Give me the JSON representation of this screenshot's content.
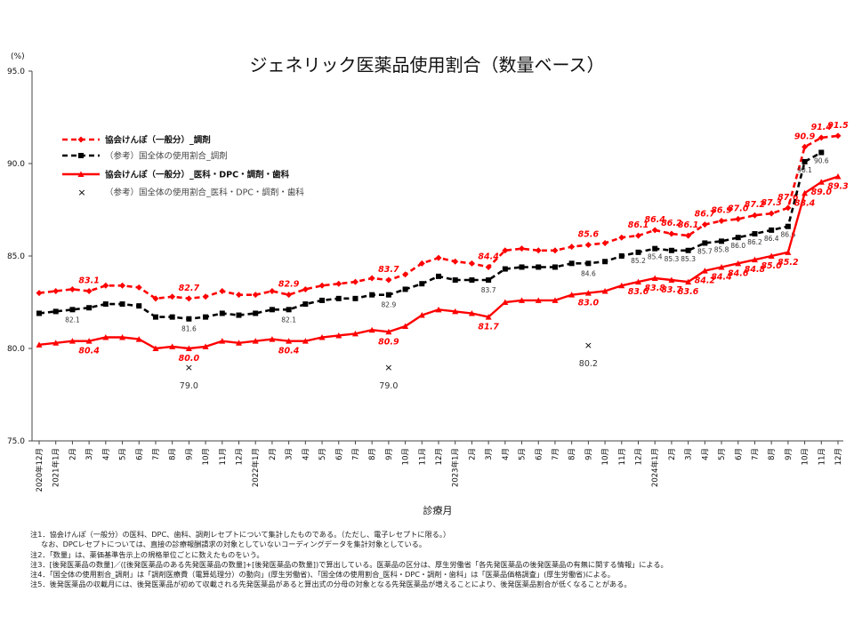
{
  "chart_data": {
    "type": "line",
    "title": "ジェネリック医薬品使用割合（数量ベース）",
    "unit_label": "(%)",
    "xlabel": "診療月",
    "ylim": [
      75.0,
      95.0
    ],
    "yticks": [
      "75.0",
      "80.0",
      "85.0",
      "90.0",
      "95.0"
    ],
    "categories": [
      "2020年12月",
      "2021年1月",
      "2月",
      "3月",
      "4月",
      "5月",
      "6月",
      "7月",
      "8月",
      "9月",
      "10月",
      "11月",
      "12月",
      "2022年1月",
      "2月",
      "3月",
      "4月",
      "5月",
      "6月",
      "7月",
      "8月",
      "9月",
      "10月",
      "11月",
      "12月",
      "2023年1月",
      "2月",
      "3月",
      "4月",
      "5月",
      "6月",
      "7月",
      "8月",
      "9月",
      "10月",
      "11月",
      "12月",
      "2024年1月",
      "2月",
      "3月",
      "4月",
      "5月",
      "6月",
      "7月",
      "8月",
      "9月",
      "10月",
      "11月",
      "12月"
    ],
    "series": [
      {
        "name": "協会けんぽ（一般分）_調剤",
        "color": "#ff0000",
        "style": "dashed",
        "marker": "diamond",
        "values": [
          83.0,
          83.1,
          83.2,
          83.1,
          83.4,
          83.4,
          83.3,
          82.7,
          82.8,
          82.7,
          82.8,
          83.1,
          82.9,
          82.9,
          83.1,
          82.9,
          83.2,
          83.4,
          83.5,
          83.6,
          83.8,
          83.7,
          84.0,
          84.6,
          84.9,
          84.7,
          84.6,
          84.4,
          85.3,
          85.4,
          85.3,
          85.3,
          85.5,
          85.6,
          85.7,
          86.0,
          86.1,
          86.4,
          86.2,
          86.1,
          86.7,
          86.9,
          87.0,
          87.2,
          87.3,
          87.6,
          90.9,
          91.4,
          91.5
        ],
        "labels": [
          {
            "i": 3,
            "text": "83.1"
          },
          {
            "i": 9,
            "text": "82.7"
          },
          {
            "i": 15,
            "text": "82.9"
          },
          {
            "i": 21,
            "text": "83.7"
          },
          {
            "i": 27,
            "text": "84.4"
          },
          {
            "i": 33,
            "text": "85.6"
          },
          {
            "i": 36,
            "text": "86.1"
          },
          {
            "i": 37,
            "text": "86.4"
          },
          {
            "i": 38,
            "text": "86.2"
          },
          {
            "i": 39,
            "text": "86.1"
          },
          {
            "i": 40,
            "text": "86.7"
          },
          {
            "i": 41,
            "text": "86.9"
          },
          {
            "i": 42,
            "text": "87.0"
          },
          {
            "i": 43,
            "text": "87.2"
          },
          {
            "i": 44,
            "text": "87.3"
          },
          {
            "i": 45,
            "text": "87.6"
          },
          {
            "i": 46,
            "text": "90.9"
          },
          {
            "i": 47,
            "text": "91.4"
          },
          {
            "i": 48,
            "text": "91.5"
          }
        ]
      },
      {
        "name": "（参考）国全体の使用割合_調剤",
        "color": "#000000",
        "style": "dashed",
        "marker": "square",
        "values": [
          81.9,
          82.0,
          82.1,
          82.2,
          82.4,
          82.4,
          82.3,
          81.7,
          81.7,
          81.6,
          81.7,
          81.9,
          81.8,
          81.9,
          82.1,
          82.1,
          82.4,
          82.6,
          82.7,
          82.7,
          82.9,
          82.9,
          83.2,
          83.5,
          83.9,
          83.7,
          83.7,
          83.7,
          84.3,
          84.4,
          84.4,
          84.4,
          84.6,
          84.6,
          84.7,
          85.0,
          85.2,
          85.4,
          85.3,
          85.3,
          85.7,
          85.8,
          86.0,
          86.2,
          86.4,
          86.6,
          90.1,
          90.6,
          null
        ],
        "labels": [
          {
            "i": 2,
            "text": "82.1"
          },
          {
            "i": 9,
            "text": "81.6"
          },
          {
            "i": 15,
            "text": "82.1"
          },
          {
            "i": 21,
            "text": "82.9"
          },
          {
            "i": 27,
            "text": "83.7"
          },
          {
            "i": 33,
            "text": "84.6"
          },
          {
            "i": 36,
            "text": "85.2"
          },
          {
            "i": 37,
            "text": "85.4"
          },
          {
            "i": 38,
            "text": "85.3"
          },
          {
            "i": 39,
            "text": "85.3"
          },
          {
            "i": 40,
            "text": "85.7"
          },
          {
            "i": 41,
            "text": "85.8"
          },
          {
            "i": 42,
            "text": "86.0"
          },
          {
            "i": 43,
            "text": "86.2"
          },
          {
            "i": 44,
            "text": "86.4"
          },
          {
            "i": 45,
            "text": "86.6"
          },
          {
            "i": 46,
            "text": "90.1"
          },
          {
            "i": 47,
            "text": "90.6"
          }
        ]
      },
      {
        "name": "協会けんぽ（一般分）_医科・DPC・調剤・歯科",
        "color": "#ff0000",
        "style": "solid",
        "marker": "triangle",
        "values": [
          80.2,
          80.3,
          80.4,
          80.4,
          80.6,
          80.6,
          80.5,
          80.0,
          80.1,
          80.0,
          80.1,
          80.4,
          80.3,
          80.4,
          80.5,
          80.4,
          80.4,
          80.6,
          80.7,
          80.8,
          81.0,
          80.9,
          81.2,
          81.8,
          82.1,
          82.0,
          81.9,
          81.7,
          82.5,
          82.6,
          82.6,
          82.6,
          82.9,
          83.0,
          83.1,
          83.4,
          83.6,
          83.8,
          83.7,
          83.6,
          84.2,
          84.4,
          84.6,
          84.8,
          85.0,
          85.2,
          88.4,
          89.0,
          89.3
        ],
        "labels": [
          {
            "i": 3,
            "text": "80.4"
          },
          {
            "i": 9,
            "text": "80.0"
          },
          {
            "i": 15,
            "text": "80.4"
          },
          {
            "i": 21,
            "text": "80.9"
          },
          {
            "i": 27,
            "text": "81.7"
          },
          {
            "i": 33,
            "text": "83.0"
          },
          {
            "i": 36,
            "text": "83.6"
          },
          {
            "i": 37,
            "text": "83.8"
          },
          {
            "i": 38,
            "text": "83.7"
          },
          {
            "i": 39,
            "text": "83.6"
          },
          {
            "i": 40,
            "text": "84.2"
          },
          {
            "i": 41,
            "text": "84.4"
          },
          {
            "i": 42,
            "text": "84.6"
          },
          {
            "i": 43,
            "text": "84.8"
          },
          {
            "i": 44,
            "text": "85.0"
          },
          {
            "i": 45,
            "text": "85.2"
          },
          {
            "i": 46,
            "text": "88.4"
          },
          {
            "i": 47,
            "text": "89.0"
          },
          {
            "i": 48,
            "text": "89.3"
          }
        ]
      },
      {
        "name": "（参考）国全体の使用割合_医科・DPC・調剤・歯科",
        "color": "#000000",
        "style": "markers",
        "marker": "x",
        "points": [
          {
            "i": 9,
            "value": 79.0,
            "text": "79.0"
          },
          {
            "i": 21,
            "value": 79.0,
            "text": "79.0"
          },
          {
            "i": 33,
            "value": 80.2,
            "text": "80.2"
          }
        ]
      }
    ],
    "legend_position": "upper-left",
    "grid": false
  },
  "notes": [
    "注1．協会けんぽ（一般分）の医科、DPC、歯科、調剤レセプトについて集計したものである。（ただし、電子レセプトに限る。）",
    "なお、DPCレセプトについては、直接の診療報酬請求の対象としていないコーディングデータを集計対象としている。",
    "注2．「数量」は、薬価基準告示上の規格単位ごとに数えたものをいう。",
    "注3．[後発医薬品の数量]／([後発医薬品のある先発医薬品の数量]+[後発医薬品の数量])で算出している。医薬品の区分は、厚生労働省「各先発医薬品の後発医薬品の有無に関する情報」による。",
    "注4．「国全体の使用割合_調剤」は「調剤医療費（電算処理分）の動向」(厚生労働省)、「国全体の使用割合_医科・DPC・調剤・歯科」は「医薬品価格調査」(厚生労働省)による。",
    "注5．後発医薬品の収載月には、後発医薬品が初めて収載される先発医薬品があると算出式の分母の対象となる先発医薬品が増えることにより、後発医薬品割合が低くなることがある。"
  ]
}
